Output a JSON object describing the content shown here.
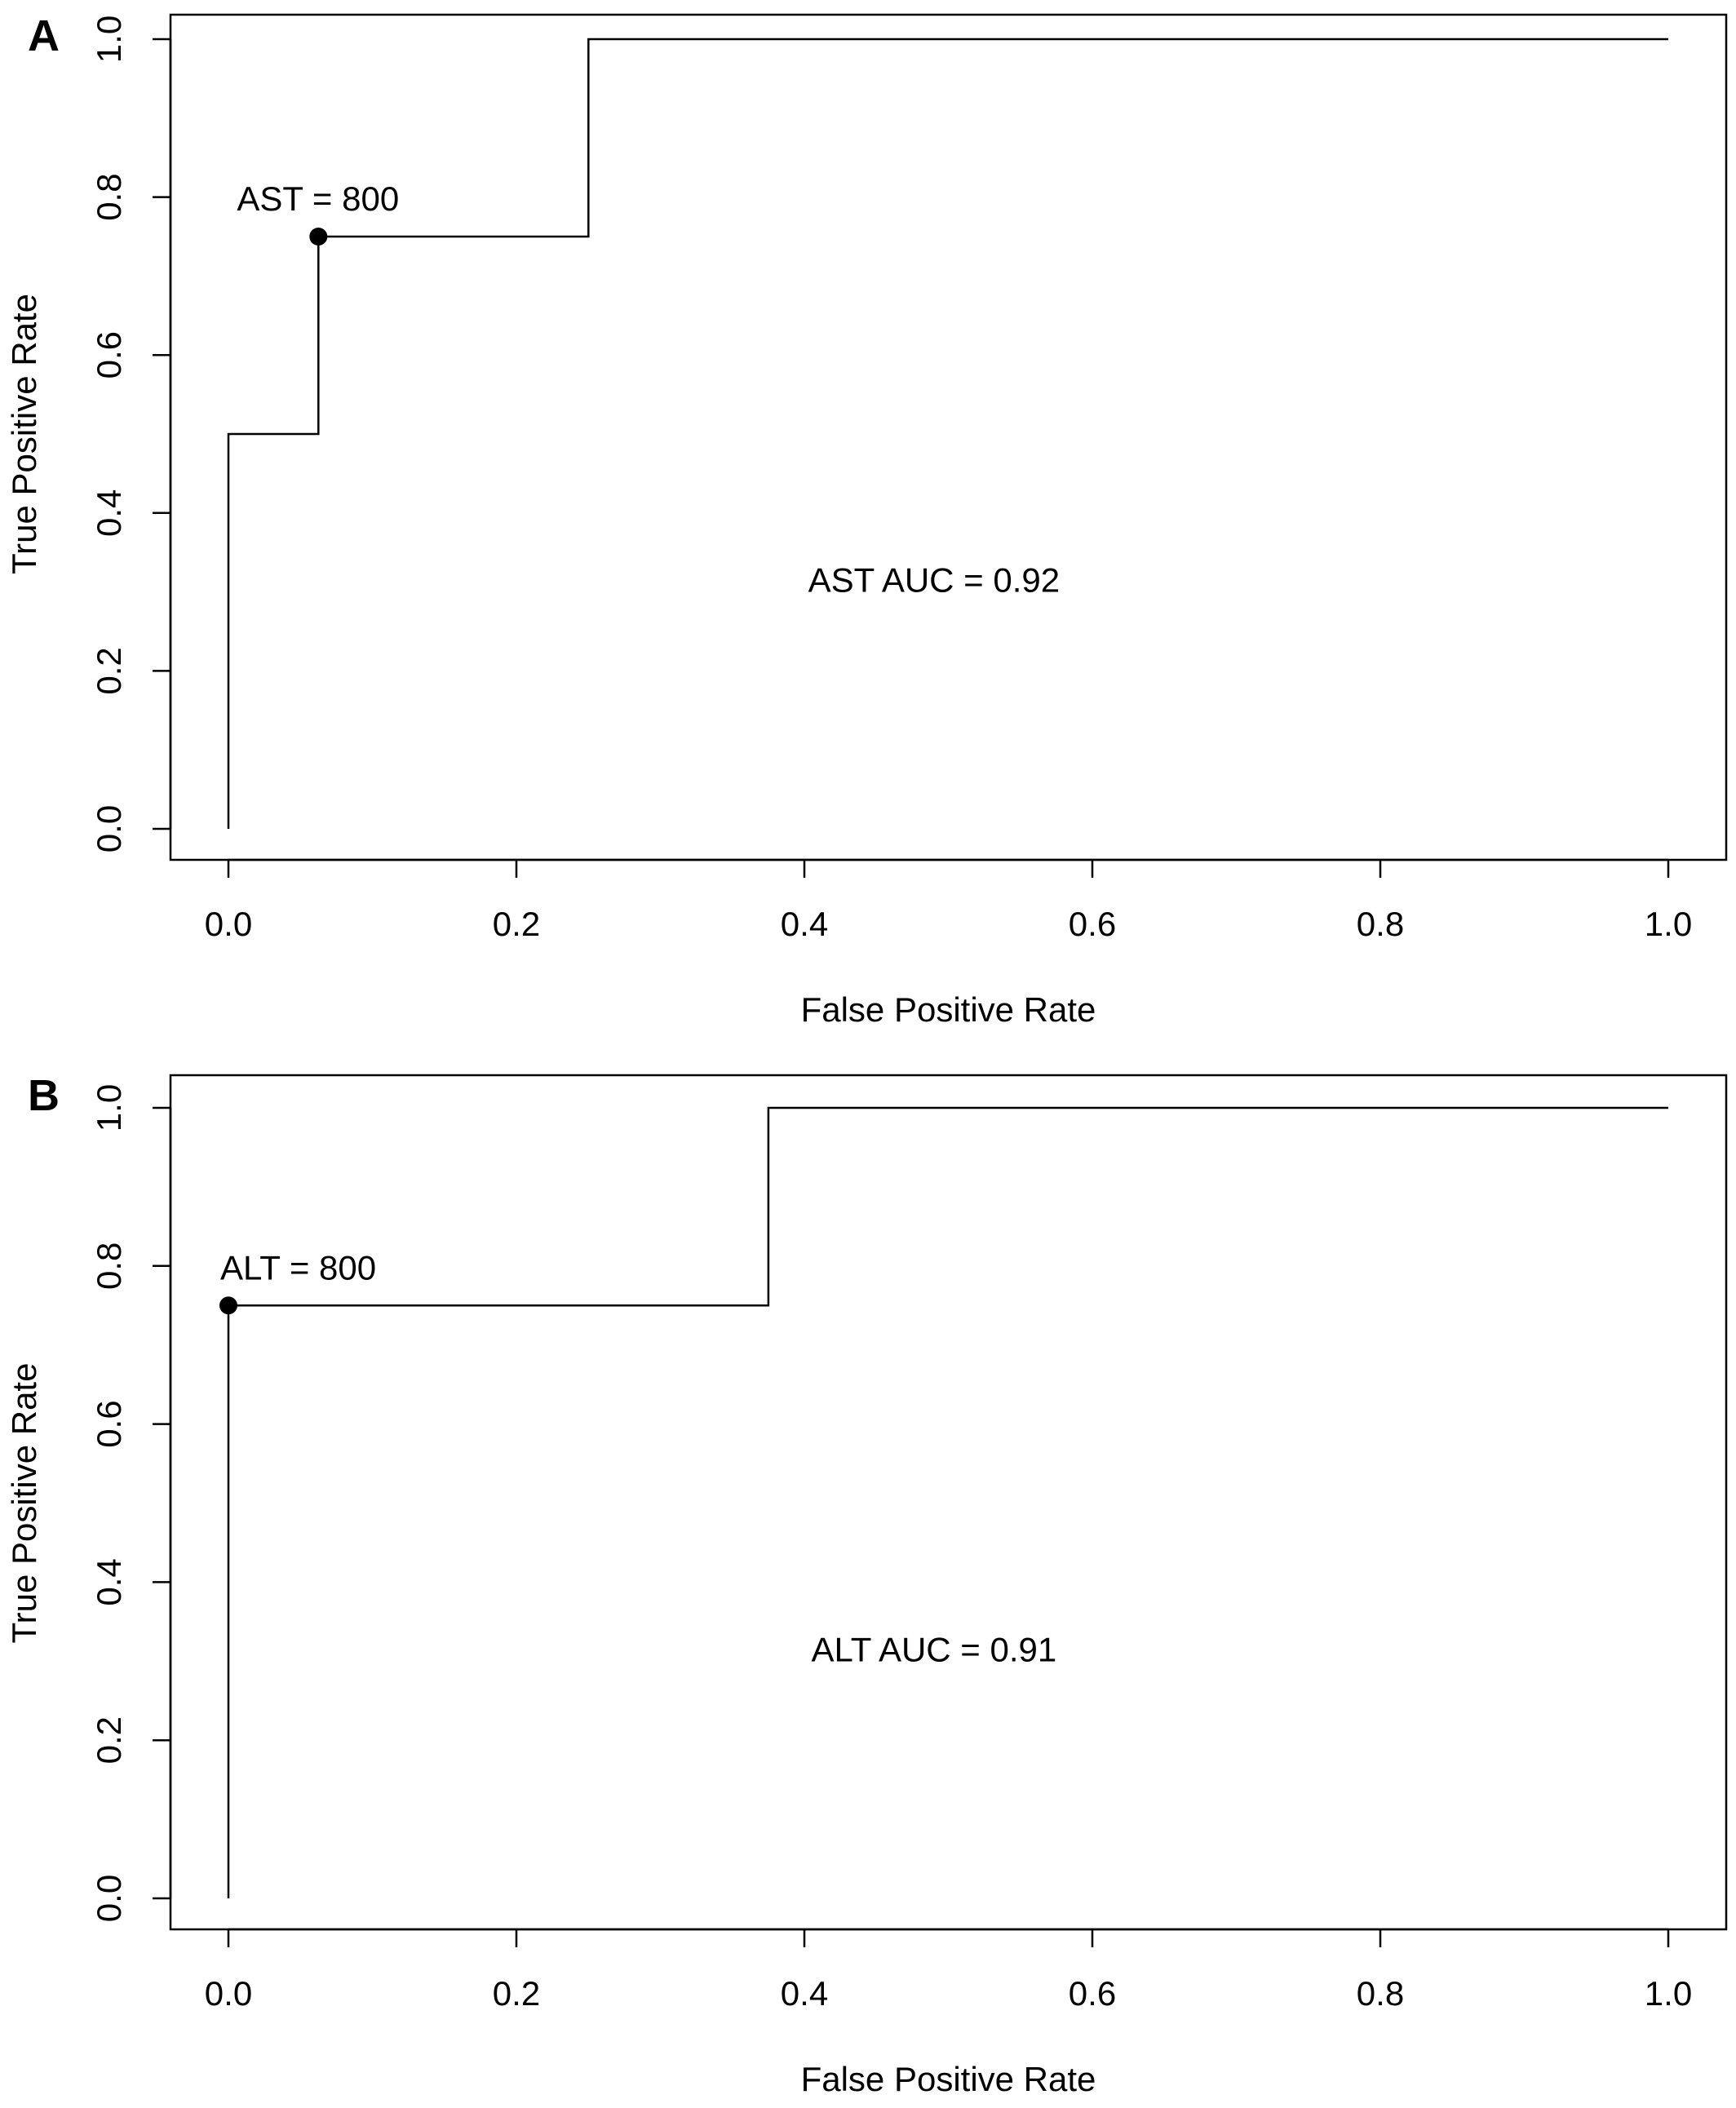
{
  "chart_data": [
    {
      "panel": "A",
      "type": "line",
      "title": "",
      "xlabel": "False Positive Rate",
      "ylabel": "True Positive Rate",
      "xlim": [
        0,
        1
      ],
      "ylim": [
        0,
        1
      ],
      "xticks": [
        "0.0",
        "0.2",
        "0.4",
        "0.6",
        "0.8",
        "1.0"
      ],
      "yticks": [
        "0.0",
        "0.2",
        "0.4",
        "0.6",
        "0.8",
        "1.0"
      ],
      "series": [
        {
          "x": [
            0,
            0,
            0.0625,
            0.0625,
            0.25,
            0.25,
            1.0
          ],
          "y": [
            0,
            0.5,
            0.5,
            0.75,
            0.75,
            1.0,
            1.0
          ]
        }
      ],
      "highlight_point": {
        "x": 0.0625,
        "y": 0.75,
        "label": "AST = 800"
      },
      "annotation": {
        "text": "AST AUC = 0.92",
        "x": 0.49,
        "y": 0.3
      },
      "grid": false,
      "legend": "none"
    },
    {
      "panel": "B",
      "type": "line",
      "title": "",
      "xlabel": "False Positive Rate",
      "ylabel": "True Positive Rate",
      "xlim": [
        0,
        1
      ],
      "ylim": [
        0,
        1
      ],
      "xticks": [
        "0.0",
        "0.2",
        "0.4",
        "0.6",
        "0.8",
        "1.0"
      ],
      "yticks": [
        "0.0",
        "0.2",
        "0.4",
        "0.6",
        "0.8",
        "1.0"
      ],
      "series": [
        {
          "x": [
            0,
            0,
            0.375,
            0.375,
            1.0
          ],
          "y": [
            0,
            0.75,
            0.75,
            1.0,
            1.0
          ]
        }
      ],
      "highlight_point": {
        "x": 0,
        "y": 0.75,
        "label": "ALT = 800"
      },
      "annotation": {
        "text": "ALT AUC = 0.91",
        "x": 0.49,
        "y": 0.3
      },
      "grid": false,
      "legend": "none"
    }
  ]
}
